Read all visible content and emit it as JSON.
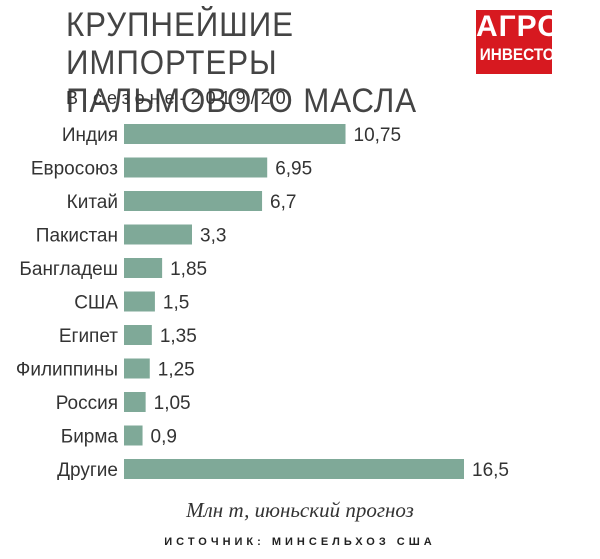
{
  "header": {
    "title_line1": "КРУПНЕЙШИЕ ИМПОРТЕРЫ",
    "title_line2": "ПАЛЬМОВОГО МАСЛА",
    "subtitle": "В сезоне-2019/20",
    "logo_line1": "АГРО",
    "logo_line2": "ИНВЕСТОР",
    "logo_color": "#d71920"
  },
  "footer": {
    "note": "Млн т, июньский прогноз",
    "source": "ИСТОЧНИК: МИНСЕЛЬХОЗ США"
  },
  "chart_data": {
    "type": "bar",
    "orientation": "horizontal",
    "categories": [
      "Индия",
      "Евросоюз",
      "Китай",
      "Пакистан",
      "Бангладеш",
      "США",
      "Египет",
      "Филиппины",
      "Россия",
      "Бирма",
      "Другие"
    ],
    "value_labels": [
      "10,75",
      "6,95",
      "6,7",
      "3,3",
      "1,85",
      "1,5",
      "1,35",
      "1,25",
      "1,05",
      "0,9",
      "16,5"
    ],
    "values": [
      10.75,
      6.95,
      6.7,
      3.3,
      1.85,
      1.5,
      1.35,
      1.25,
      1.05,
      0.9,
      16.5
    ],
    "bar_color": "#7fa998",
    "xlim": [
      0,
      16.5
    ],
    "grid": false,
    "legend": "none"
  }
}
